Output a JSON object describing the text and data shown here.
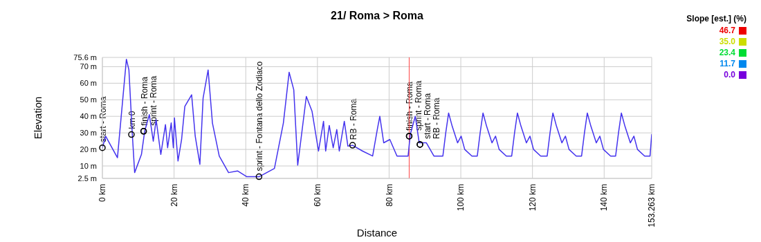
{
  "chart_data": {
    "type": "line",
    "title": "21/ Roma > Roma",
    "xlabel": "Distance",
    "ylabel": "Elevation",
    "xlim": [
      0,
      153.263
    ],
    "xticks": [
      {
        "value": 0,
        "label": "0 km"
      },
      {
        "value": 20,
        "label": "20 km"
      },
      {
        "value": 40,
        "label": "40 km"
      },
      {
        "value": 60,
        "label": "60 km"
      },
      {
        "value": 80,
        "label": "80 km"
      },
      {
        "value": 100,
        "label": "100 km"
      },
      {
        "value": 120,
        "label": "120 km"
      },
      {
        "value": 140,
        "label": "140 km"
      },
      {
        "value": 153.263,
        "label": "153.263 km"
      }
    ],
    "ylim": [
      2.5,
      75.6
    ],
    "yticks": [
      {
        "value": 2.5,
        "label": "2.5 m"
      },
      {
        "value": 10,
        "label": "10 m"
      },
      {
        "value": 20,
        "label": "20 m"
      },
      {
        "value": 30,
        "label": "30 m"
      },
      {
        "value": 40,
        "label": "40 m"
      },
      {
        "value": 50,
        "label": "50 m"
      },
      {
        "value": 60,
        "label": "60 m"
      },
      {
        "value": 70,
        "label": "70 m"
      },
      {
        "value": 75.6,
        "label": "75.6 m"
      }
    ],
    "grid": true,
    "series": [
      {
        "color": "#4433ee",
        "x": [
          0,
          0.9,
          4.2,
          6.7,
          7.4,
          8.3,
          9.0,
          10.9,
          11.8,
          13.1,
          14.2,
          15.0,
          16.3,
          17.6,
          18.2,
          19.2,
          19.8,
          20.1,
          21.1,
          22.1,
          23.0,
          24.9,
          25.9,
          27.2,
          28.1,
          29.5,
          30.7,
          32.6,
          35.2,
          37.7,
          40.3,
          43.7,
          48.0,
          50.5,
          52.1,
          53.4,
          54.5,
          55.4,
          56.9,
          58.5,
          60.3,
          61.7,
          62.3,
          63.3,
          64.4,
          65.4,
          66.1,
          67.5,
          68.5,
          69.8,
          72.6,
          75.4,
          76.7,
          77.4,
          78.5,
          80.2,
          82.2,
          85.3,
          85.9,
          87.3,
          88.4,
          90.4,
          92.5,
          95.0,
          95.8,
          96.6,
          97.6,
          99.1,
          100.1,
          101.1,
          103.1,
          104.6,
          105.4,
          106.2,
          107.2,
          108.7,
          109.7,
          110.7,
          112.7,
          114.2,
          115.0,
          115.8,
          116.8,
          118.3,
          119.3,
          120.3,
          122.3,
          124.1,
          124.9,
          125.7,
          126.7,
          128.2,
          129.2,
          130.2,
          132.2,
          133.7,
          134.5,
          135.3,
          136.3,
          137.8,
          138.8,
          139.8,
          141.8,
          143.2,
          144.0,
          144.8,
          145.8,
          147.3,
          148.3,
          149.3,
          151.3,
          152.8,
          153.263
        ],
        "values": [
          21,
          28,
          15,
          74.5,
          68,
          31,
          6,
          17,
          31,
          41,
          25,
          38,
          17,
          35,
          21,
          36,
          21,
          39,
          13,
          26,
          46,
          53,
          28,
          11,
          51,
          68,
          36,
          16,
          6,
          7,
          3.5,
          3.5,
          8.5,
          36,
          66.6,
          56,
          10.5,
          26,
          52,
          43,
          19,
          37,
          19,
          34.5,
          21,
          32,
          19,
          37,
          22,
          22.5,
          19,
          16,
          32,
          40,
          24,
          26,
          16,
          16,
          29,
          40,
          24,
          24,
          16,
          16,
          30,
          42,
          34,
          24,
          28,
          20,
          16,
          16,
          30,
          42,
          34,
          24,
          28,
          20,
          16,
          16,
          30,
          42,
          34,
          24,
          28,
          20,
          16,
          16,
          30,
          42,
          34,
          24,
          28,
          20,
          16,
          16,
          30,
          42,
          34,
          24,
          28,
          20,
          16,
          16,
          30,
          42,
          34,
          24,
          28,
          20,
          16,
          16,
          29
        ]
      }
    ],
    "ref_lines": [
      {
        "axis": "x",
        "value": 85.6,
        "color": "#ff4444"
      }
    ],
    "annotations": [
      "Slope [est.] (%)",
      "46.7",
      "35.0",
      "23.4",
      "11.7",
      "0.0",
      {
        "text": "start - Roma",
        "x": 0,
        "y": 21
      },
      {
        "text": "km 0",
        "x": 8.1,
        "y": 29
      },
      {
        "text": "finish - Roma",
        "x": 11.5,
        "y": 31
      },
      {
        "text": "sprint - Roma",
        "x": 11.5,
        "y": 31
      },
      {
        "text": "sprint - Fontana dello Zodiaco",
        "x": 43.7,
        "y": 3.5
      },
      {
        "text": "RB - Roma",
        "x": 69.8,
        "y": 22.5
      },
      {
        "text": "finish - Roma",
        "x": 85.6,
        "y": 28
      },
      {
        "text": "sprint - Roma",
        "x": 85.6,
        "y": 28
      },
      {
        "text": "start - Roma",
        "x": 88.6,
        "y": 23
      },
      {
        "text": "RB - Roma",
        "x": 88.6,
        "y": 23
      }
    ]
  }
}
